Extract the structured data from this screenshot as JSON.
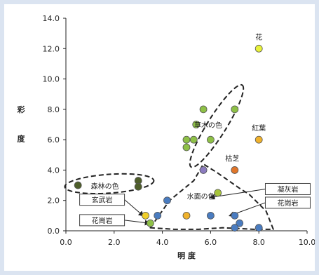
{
  "chart_data": {
    "type": "scatter",
    "title": "",
    "xlabel": "明 度",
    "ylabel": "彩 度",
    "xlim": [
      0,
      10
    ],
    "ylim": [
      0,
      14
    ],
    "x_ticks": [
      "0.0",
      "2.0",
      "4.0",
      "6.0",
      "8.0",
      "10.0"
    ],
    "y_ticks": [
      "0.0",
      "2.0",
      "4.0",
      "6.0",
      "8.0",
      "10.0",
      "12.0",
      "14.0"
    ],
    "grid": false,
    "points": [
      {
        "x": 8.0,
        "y": 12.0,
        "color": "#e8f23a"
      },
      {
        "x": 8.0,
        "y": 6.0,
        "color": "#f0b22c"
      },
      {
        "x": 7.0,
        "y": 4.0,
        "color": "#e0762a"
      },
      {
        "x": 5.7,
        "y": 8.0,
        "color": "#8ec047"
      },
      {
        "x": 5.4,
        "y": 7.0,
        "color": "#8ec047"
      },
      {
        "x": 7.0,
        "y": 8.0,
        "color": "#8ec047"
      },
      {
        "x": 5.0,
        "y": 6.0,
        "color": "#8ec047"
      },
      {
        "x": 5.3,
        "y": 6.0,
        "color": "#8ec047"
      },
      {
        "x": 6.0,
        "y": 6.0,
        "color": "#8ec047"
      },
      {
        "x": 5.0,
        "y": 5.5,
        "color": "#8ec047"
      },
      {
        "x": 5.7,
        "y": 4.0,
        "color": "#8b7bbf"
      },
      {
        "x": 6.3,
        "y": 2.5,
        "color": "#a6c43a"
      },
      {
        "x": 5.0,
        "y": 1.0,
        "color": "#f0b22c"
      },
      {
        "x": 6.0,
        "y": 1.0,
        "color": "#4a7cc0"
      },
      {
        "x": 7.0,
        "y": 1.0,
        "color": "#4a7cc0"
      },
      {
        "x": 4.2,
        "y": 2.0,
        "color": "#4a7cc0"
      },
      {
        "x": 3.8,
        "y": 1.0,
        "color": "#4a7cc0"
      },
      {
        "x": 7.2,
        "y": 0.5,
        "color": "#4a7cc0"
      },
      {
        "x": 7.0,
        "y": 0.2,
        "color": "#4a7cc0"
      },
      {
        "x": 8.0,
        "y": 0.2,
        "color": "#4a7cc0"
      },
      {
        "x": 3.3,
        "y": 1.0,
        "color": "#f0cf2a"
      },
      {
        "x": 3.5,
        "y": 0.5,
        "color": "#8ec047"
      },
      {
        "x": 3.0,
        "y": 3.3,
        "color": "#4e5e2a"
      },
      {
        "x": 3.0,
        "y": 2.9,
        "color": "#4e5e2a"
      },
      {
        "x": 0.5,
        "y": 3.0,
        "color": "#4e5e2a"
      }
    ],
    "annotations": [
      {
        "text": "花",
        "x": 8.0,
        "y": 12.6
      },
      {
        "text": "紅葉",
        "x": 8.0,
        "y": 6.6
      },
      {
        "text": "枯芝",
        "x": 6.9,
        "y": 4.6
      },
      {
        "text": "草木の色",
        "x": 5.9,
        "y": 6.8
      },
      {
        "text": "水面の色",
        "x": 5.6,
        "y": 2.1
      }
    ],
    "boxed_labels": [
      {
        "text": "森林の色",
        "x": 1.5,
        "y": 2.95
      },
      {
        "text": "玄武岩",
        "x": 1.5,
        "y": 2.05
      },
      {
        "text": "花崗岩",
        "x": 1.5,
        "y": 0.7
      },
      {
        "text": "凝灰岩",
        "x": 9.2,
        "y": 2.75
      },
      {
        "text": "花崗岩",
        "x": 9.2,
        "y": 1.85
      }
    ]
  }
}
